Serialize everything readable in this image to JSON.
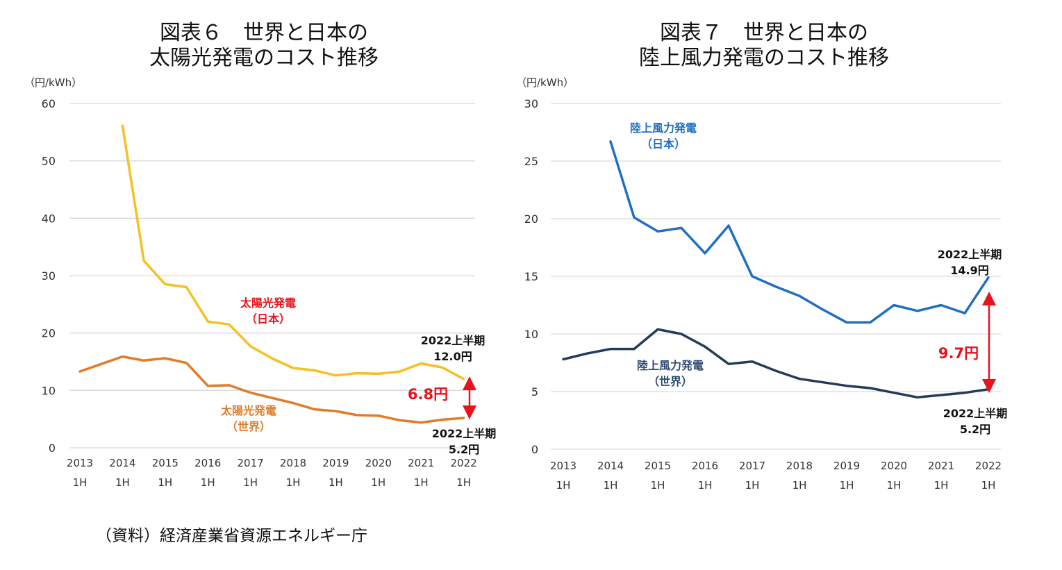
{
  "source": "（資料）経済産業省資源エネルギー庁",
  "chart_data": [
    {
      "type": "line",
      "title_line1": "図表６　世界と日本の",
      "title_line2": "太陽光発電のコスト推移",
      "unit_label": "（円/kWh）",
      "ylim": [
        0,
        60
      ],
      "yticks": [
        0,
        10,
        20,
        30,
        40,
        50,
        60
      ],
      "grid": true,
      "x": [
        "2013 1H",
        "2013 2H",
        "2014 1H",
        "2014 2H",
        "2015 1H",
        "2015 2H",
        "2016 1H",
        "2016 2H",
        "2017 1H",
        "2017 2H",
        "2018 1H",
        "2018 2H",
        "2019 1H",
        "2019 2H",
        "2020 1H",
        "2020 2H",
        "2021 1H",
        "2021 2H",
        "2022 1H"
      ],
      "xtick_labels": [
        {
          "year": "2013",
          "half": "1H"
        },
        {
          "year": "2014",
          "half": "1H"
        },
        {
          "year": "2015",
          "half": "1H"
        },
        {
          "year": "2016",
          "half": "1H"
        },
        {
          "year": "2017",
          "half": "1H"
        },
        {
          "year": "2018",
          "half": "1H"
        },
        {
          "year": "2019",
          "half": "1H"
        },
        {
          "year": "2020",
          "half": "1H"
        },
        {
          "year": "2021",
          "half": "1H"
        },
        {
          "year": "2022",
          "half": "1H"
        }
      ],
      "series": [
        {
          "name": "太陽光発電（日本）",
          "label_line1": "太陽光発電",
          "label_line2": "（日本）",
          "color": "#f5c020",
          "label_color": "#e8131b",
          "values": [
            null,
            null,
            56.1,
            32.6,
            28.5,
            28.0,
            22.0,
            21.5,
            17.7,
            15.6,
            13.9,
            13.5,
            12.6,
            13.0,
            12.9,
            13.3,
            14.7,
            14.0,
            12.0
          ]
        },
        {
          "name": "太陽光発電（世界）",
          "label_line1": "太陽光発電",
          "label_line2": "（世界）",
          "color": "#e07b28",
          "label_color": "#e07b28",
          "values": [
            13.3,
            14.6,
            15.9,
            15.2,
            15.6,
            14.8,
            10.8,
            10.9,
            9.6,
            8.7,
            7.8,
            6.7,
            6.4,
            5.7,
            5.6,
            4.8,
            4.4,
            4.9,
            5.2
          ]
        }
      ],
      "annotations": {
        "japan_end_line1": "2022上半期",
        "japan_end_line2": "12.0円",
        "world_end_line1": "2022上半期",
        "world_end_line2": "5.2円",
        "gap": "6.8円",
        "gap_color": "#e8131b"
      }
    },
    {
      "type": "line",
      "title_line1": "図表７　世界と日本の",
      "title_line2": "陸上風力発電のコスト推移",
      "unit_label": "（円/kWh）",
      "ylim": [
        0,
        30
      ],
      "yticks": [
        0,
        5,
        10,
        15,
        20,
        25,
        30
      ],
      "grid": true,
      "x": [
        "2013 1H",
        "2013 2H",
        "2014 1H",
        "2014 2H",
        "2015 1H",
        "2015 2H",
        "2016 1H",
        "2016 2H",
        "2017 1H",
        "2017 2H",
        "2018 1H",
        "2018 2H",
        "2019 1H",
        "2019 2H",
        "2020 1H",
        "2020 2H",
        "2021 1H",
        "2021 2H",
        "2022 1H"
      ],
      "xtick_labels": [
        {
          "year": "2013",
          "half": "1H"
        },
        {
          "year": "2014",
          "half": "1H"
        },
        {
          "year": "2015",
          "half": "1H"
        },
        {
          "year": "2016",
          "half": "1H"
        },
        {
          "year": "2017",
          "half": "1H"
        },
        {
          "year": "2018",
          "half": "1H"
        },
        {
          "year": "2019",
          "half": "1H"
        },
        {
          "year": "2020",
          "half": "1H"
        },
        {
          "year": "2021",
          "half": "1H"
        },
        {
          "year": "2022",
          "half": "1H"
        }
      ],
      "series": [
        {
          "name": "陸上風力発電（日本）",
          "label_line1": "陸上風力発電",
          "label_line2": "（日本）",
          "color": "#1f6fc1",
          "label_color": "#1f6fc1",
          "values": [
            null,
            null,
            26.7,
            20.1,
            18.9,
            19.2,
            17.0,
            19.4,
            15.0,
            14.1,
            13.3,
            12.1,
            11.0,
            11.0,
            12.5,
            12.0,
            12.5,
            11.8,
            14.9
          ]
        },
        {
          "name": "陸上風力発電（世界）",
          "label_line1": "陸上風力発電",
          "label_line2": "（世界）",
          "color": "#243b5a",
          "label_color": "#2e4a6e",
          "values": [
            7.8,
            8.3,
            8.7,
            8.7,
            10.4,
            10.0,
            8.9,
            7.4,
            7.6,
            6.8,
            6.1,
            5.8,
            5.5,
            5.3,
            4.9,
            4.5,
            4.7,
            4.9,
            5.2
          ]
        }
      ],
      "annotations": {
        "japan_end_line1": "2022上半期",
        "japan_end_line2": "14.9円",
        "world_end_line1": "2022上半期",
        "world_end_line2": "5.2円",
        "gap": "9.7円",
        "gap_color": "#e8131b"
      }
    }
  ]
}
